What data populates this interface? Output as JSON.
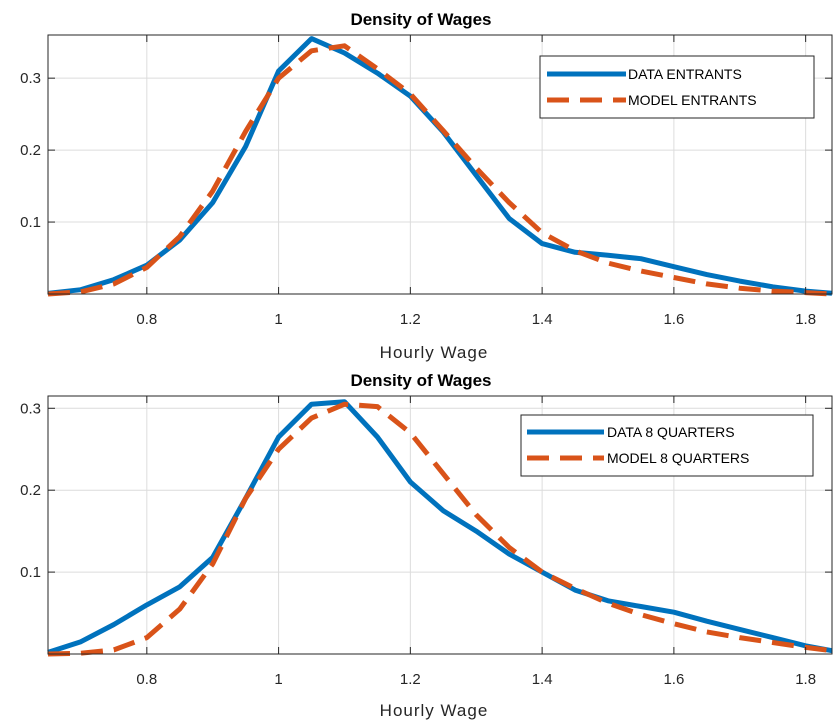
{
  "chart_data": [
    {
      "type": "line",
      "title": "Density of Wages",
      "xlabel": "Hourly Wage",
      "ylabel": "",
      "xlim": [
        0.65,
        1.84
      ],
      "ylim": [
        0,
        0.36
      ],
      "xticks": [
        0.8,
        1,
        1.2,
        1.4,
        1.6,
        1.8
      ],
      "xtick_labels": [
        "0.8",
        "1",
        "1.2",
        "1.4",
        "1.6",
        "1.8"
      ],
      "yticks": [
        0.1,
        0.2,
        0.3
      ],
      "ytick_labels": [
        "0.1",
        "0.2",
        "0.3"
      ],
      "grid": true,
      "legend_position": "top-right",
      "series": [
        {
          "name": "DATA ENTRANTS",
          "color": "#0072BD",
          "style": "solid",
          "x": [
            0.65,
            0.7,
            0.75,
            0.8,
            0.85,
            0.9,
            0.95,
            1.0,
            1.05,
            1.1,
            1.15,
            1.2,
            1.25,
            1.3,
            1.35,
            1.4,
            1.45,
            1.5,
            1.55,
            1.6,
            1.65,
            1.7,
            1.75,
            1.8,
            1.84
          ],
          "y": [
            0.001,
            0.006,
            0.02,
            0.04,
            0.075,
            0.127,
            0.205,
            0.31,
            0.355,
            0.335,
            0.307,
            0.275,
            0.225,
            0.165,
            0.105,
            0.07,
            0.058,
            0.054,
            0.049,
            0.038,
            0.027,
            0.018,
            0.01,
            0.004,
            0.001
          ]
        },
        {
          "name": "MODEL ENTRANTS",
          "color": "#D95319",
          "style": "dashed",
          "x": [
            0.65,
            0.7,
            0.75,
            0.8,
            0.85,
            0.9,
            0.95,
            1.0,
            1.05,
            1.1,
            1.15,
            1.2,
            1.25,
            1.3,
            1.35,
            1.4,
            1.45,
            1.5,
            1.55,
            1.6,
            1.65,
            1.7,
            1.75,
            1.8,
            1.84
          ],
          "y": [
            0.0,
            0.003,
            0.014,
            0.037,
            0.08,
            0.143,
            0.226,
            0.3,
            0.338,
            0.345,
            0.313,
            0.278,
            0.227,
            0.175,
            0.127,
            0.085,
            0.06,
            0.043,
            0.032,
            0.023,
            0.014,
            0.008,
            0.004,
            0.002,
            0.0
          ]
        }
      ]
    },
    {
      "type": "line",
      "title": "Density of Wages",
      "xlabel": "Hourly Wage",
      "ylabel": "",
      "xlim": [
        0.65,
        1.84
      ],
      "ylim": [
        0,
        0.315
      ],
      "xticks": [
        0.8,
        1,
        1.2,
        1.4,
        1.6,
        1.8
      ],
      "xtick_labels": [
        "0.8",
        "1",
        "1.2",
        "1.4",
        "1.6",
        "1.8"
      ],
      "yticks": [
        0.1,
        0.2,
        0.3
      ],
      "ytick_labels": [
        "0.1",
        "0.2",
        "0.3"
      ],
      "grid": true,
      "legend_position": "top-right",
      "series": [
        {
          "name": "DATA 8 QUARTERS",
          "color": "#0072BD",
          "style": "solid",
          "x": [
            0.65,
            0.7,
            0.75,
            0.8,
            0.85,
            0.9,
            0.95,
            1.0,
            1.05,
            1.1,
            1.15,
            1.2,
            1.25,
            1.3,
            1.35,
            1.4,
            1.45,
            1.5,
            1.55,
            1.6,
            1.65,
            1.7,
            1.75,
            1.8,
            1.84
          ],
          "y": [
            0.002,
            0.015,
            0.036,
            0.06,
            0.082,
            0.118,
            0.19,
            0.265,
            0.305,
            0.308,
            0.265,
            0.21,
            0.175,
            0.15,
            0.122,
            0.1,
            0.078,
            0.065,
            0.058,
            0.051,
            0.04,
            0.03,
            0.02,
            0.01,
            0.004
          ]
        },
        {
          "name": "MODEL 8 QUARTERS",
          "color": "#D95319",
          "style": "dashed",
          "x": [
            0.65,
            0.7,
            0.75,
            0.8,
            0.85,
            0.9,
            0.95,
            1.0,
            1.05,
            1.1,
            1.15,
            1.2,
            1.25,
            1.3,
            1.35,
            1.4,
            1.45,
            1.5,
            1.55,
            1.6,
            1.65,
            1.7,
            1.75,
            1.8,
            1.84
          ],
          "y": [
            0.0,
            0.001,
            0.005,
            0.02,
            0.055,
            0.11,
            0.19,
            0.25,
            0.288,
            0.305,
            0.302,
            0.27,
            0.22,
            0.17,
            0.13,
            0.1,
            0.08,
            0.062,
            0.048,
            0.037,
            0.027,
            0.02,
            0.014,
            0.008,
            0.004
          ]
        }
      ]
    }
  ]
}
